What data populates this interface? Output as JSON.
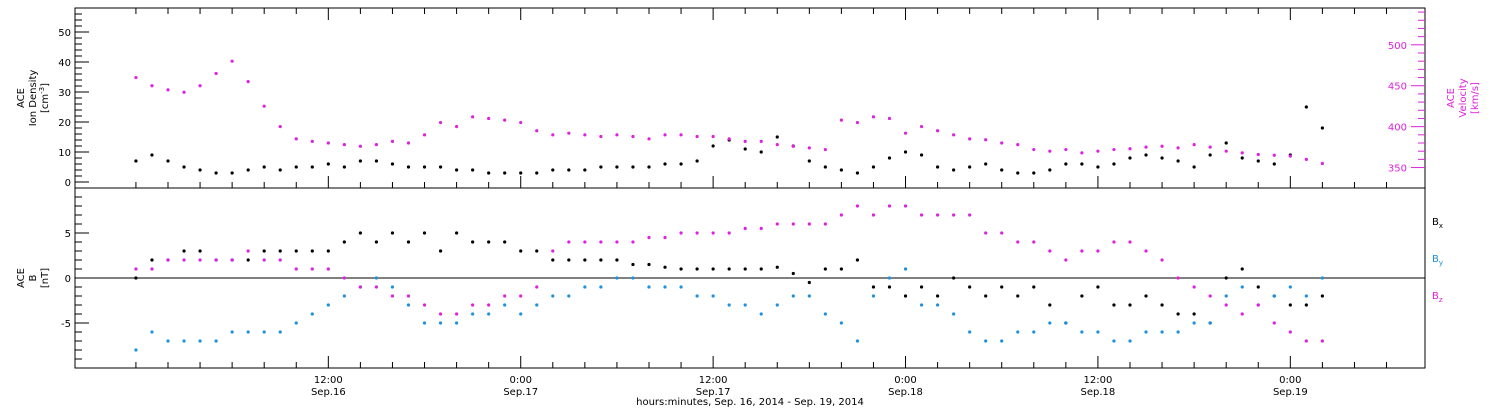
{
  "colors": {
    "black": "#000000",
    "magenta": "#e020e0",
    "blue": "#1f8fe0"
  },
  "chart_data": [
    {
      "type": "scatter",
      "panel": "top",
      "ylabel": {
        "line1": "ACE",
        "line2": "Ion Density",
        "line3": "[cm",
        "sup": "-3",
        "close": "]"
      },
      "ylabel_right": {
        "line1": "ACE",
        "line2": "Velocity",
        "line3": "[km/s]"
      },
      "ylim": [
        -2,
        58
      ],
      "yticks": [
        "0",
        "10",
        "20",
        "30",
        "40",
        "50"
      ],
      "ylim_right": [
        325,
        545
      ],
      "yticks_right": [
        "350",
        "400",
        "450",
        "500"
      ],
      "x_unit": "hours since 00:00 Sep.16, 2014",
      "series": [
        {
          "color": "black",
          "axis": "left",
          "x": [
            0,
            1,
            2,
            3,
            4,
            5,
            6,
            7,
            8,
            9,
            10,
            11,
            12,
            13,
            14,
            15,
            16,
            17,
            18,
            19,
            20,
            21,
            22,
            23,
            24,
            25,
            26,
            27,
            28,
            29,
            30,
            31,
            32,
            33,
            34,
            35,
            36,
            37,
            38,
            39,
            40,
            41,
            42,
            43,
            44,
            45,
            46,
            47,
            48,
            49,
            50,
            51,
            52,
            53,
            54,
            55,
            56,
            57,
            58,
            59,
            60,
            61,
            62,
            63,
            64,
            65,
            66,
            67,
            68,
            69,
            70,
            71,
            72,
            73,
            74
          ],
          "y": [
            7,
            9,
            7,
            5,
            4,
            3,
            3,
            4,
            5,
            4,
            5,
            5,
            6,
            5,
            7,
            7,
            6,
            5,
            5,
            5,
            4,
            4,
            3,
            3,
            3,
            3,
            4,
            4,
            4,
            5,
            5,
            5,
            5,
            6,
            6,
            7,
            12,
            14,
            11,
            10,
            15,
            12,
            7,
            5,
            4,
            3,
            5,
            8,
            10,
            9,
            5,
            4,
            5,
            6,
            4,
            3,
            3,
            4,
            6,
            6,
            5,
            6,
            8,
            9,
            8,
            7,
            5,
            9,
            13,
            8,
            7,
            6,
            9,
            25,
            18
          ]
        }
      ],
      "series_right": [
        {
          "color": "magenta",
          "axis": "right",
          "x": [
            0,
            1,
            2,
            3,
            4,
            5,
            6,
            7,
            8,
            9,
            10,
            11,
            12,
            13,
            14,
            15,
            16,
            17,
            18,
            19,
            20,
            21,
            22,
            23,
            24,
            25,
            26,
            27,
            28,
            29,
            30,
            31,
            32,
            33,
            34,
            35,
            36,
            37,
            38,
            39,
            40,
            41,
            42,
            43,
            44,
            45,
            46,
            47,
            48,
            49,
            50,
            51,
            52,
            53,
            54,
            55,
            56,
            57,
            58,
            59,
            60,
            61,
            62,
            63,
            64,
            65,
            66,
            67,
            68,
            69,
            70,
            71,
            72,
            73,
            74
          ],
          "y": [
            460,
            450,
            445,
            442,
            450,
            465,
            480,
            455,
            425,
            400,
            385,
            382,
            380,
            378,
            376,
            378,
            382,
            380,
            390,
            405,
            400,
            412,
            410,
            408,
            405,
            395,
            390,
            392,
            390,
            388,
            390,
            388,
            385,
            390,
            390,
            388,
            388,
            385,
            382,
            382,
            378,
            376,
            374,
            372,
            408,
            405,
            412,
            410,
            392,
            400,
            395,
            390,
            385,
            384,
            380,
            378,
            372,
            370,
            372,
            368,
            370,
            372,
            373,
            375,
            376,
            374,
            378,
            375,
            370,
            368,
            366,
            365,
            364,
            360,
            355
          ]
        }
      ]
    },
    {
      "type": "scatter",
      "panel": "bottom",
      "ylabel": {
        "line1": "ACE",
        "line2": "B",
        "line3": "[nT]"
      },
      "ylim": [
        -10,
        10
      ],
      "yticks": [
        "-5",
        "0",
        "5"
      ],
      "xlim": [
        -3.8,
        80.4
      ],
      "x_unit": "hours since 00:00 Sep.16, 2014",
      "xtick_hours": [
        12,
        24,
        36,
        48,
        60,
        72
      ],
      "xtick_labels": [
        {
          "time": "12:00",
          "date": "Sep.16"
        },
        {
          "time": "0:00",
          "date": "Sep.17"
        },
        {
          "time": "12:00",
          "date": "Sep.17"
        },
        {
          "time": "0:00",
          "date": "Sep.18"
        },
        {
          "time": "12:00",
          "date": "Sep.18"
        },
        {
          "time": "0:00",
          "date": "Sep.19"
        }
      ],
      "xlabel": "hours:minutes, Sep. 16, 2014 - Sep. 19, 2014",
      "legend": [
        {
          "name": "B",
          "sub": "x",
          "color": "black"
        },
        {
          "name": "B",
          "sub": "y",
          "color": "blue"
        },
        {
          "name": "B",
          "sub": "z",
          "color": "magenta"
        }
      ],
      "series": [
        {
          "name": "Bx",
          "color": "black",
          "x": [
            0,
            1,
            2,
            3,
            4,
            5,
            6,
            7,
            8,
            9,
            10,
            11,
            12,
            13,
            14,
            15,
            16,
            17,
            18,
            19,
            20,
            21,
            22,
            23,
            24,
            25,
            26,
            27,
            28,
            29,
            30,
            31,
            32,
            33,
            34,
            35,
            36,
            37,
            38,
            39,
            40,
            41,
            42,
            43,
            44,
            45,
            46,
            47,
            48,
            49,
            50,
            51,
            52,
            53,
            54,
            55,
            56,
            57,
            58,
            59,
            60,
            61,
            62,
            63,
            64,
            65,
            66,
            67,
            68,
            69,
            70,
            71,
            72,
            73,
            74
          ],
          "y": [
            0,
            2,
            2,
            3,
            3,
            2,
            2,
            2,
            3,
            3,
            3,
            3,
            3,
            4,
            5,
            4,
            5,
            4,
            5,
            3,
            5,
            4,
            4,
            4,
            3,
            3,
            2,
            2,
            2,
            2,
            2,
            1.5,
            1.5,
            1.2,
            1,
            1,
            1,
            1,
            1,
            1,
            1.2,
            0.5,
            -0.5,
            1,
            1,
            2,
            -1,
            -1,
            -2,
            -1,
            -2,
            0,
            -1,
            -2,
            -1,
            -2,
            -1,
            -3,
            -5,
            -2,
            -1,
            -3,
            -3,
            -2,
            -3,
            -4,
            -4,
            -5,
            0,
            1,
            -1,
            -2,
            -3,
            -3,
            -2
          ]
        },
        {
          "name": "By",
          "color": "blue",
          "x": [
            0,
            1,
            2,
            3,
            4,
            5,
            6,
            7,
            8,
            9,
            10,
            11,
            12,
            13,
            14,
            15,
            16,
            17,
            18,
            19,
            20,
            21,
            22,
            23,
            24,
            25,
            26,
            27,
            28,
            29,
            30,
            31,
            32,
            33,
            34,
            35,
            36,
            37,
            38,
            39,
            40,
            41,
            42,
            43,
            44,
            45,
            46,
            47,
            48,
            49,
            50,
            51,
            52,
            53,
            54,
            55,
            56,
            57,
            58,
            59,
            60,
            61,
            62,
            63,
            64,
            65,
            66,
            67,
            68,
            69,
            70,
            71,
            72,
            73,
            74
          ],
          "y": [
            -8,
            -6,
            -7,
            -7,
            -7,
            -7,
            -6,
            -6,
            -6,
            -6,
            -5,
            -4,
            -3,
            -2,
            -1,
            0,
            -1,
            -3,
            -5,
            -5,
            -5,
            -4,
            -4,
            -3,
            -4,
            -3,
            -2,
            -2,
            -1,
            -1,
            0,
            0,
            -1,
            -1,
            -1,
            -2,
            -2,
            -3,
            -3,
            -4,
            -3,
            -2,
            -2,
            -4,
            -5,
            -7,
            -2,
            0,
            1,
            -3,
            -3,
            -4,
            -6,
            -7,
            -7,
            -6,
            -6,
            -5,
            -5,
            -6,
            -6,
            -7,
            -7,
            -6,
            -6,
            -6,
            -5,
            -5,
            -2,
            -1,
            -3,
            -2,
            -1,
            -2,
            0
          ]
        },
        {
          "name": "Bz",
          "color": "magenta",
          "x": [
            0,
            1,
            2,
            3,
            4,
            5,
            6,
            7,
            8,
            9,
            10,
            11,
            12,
            13,
            14,
            15,
            16,
            17,
            18,
            19,
            20,
            21,
            22,
            23,
            24,
            25,
            26,
            27,
            28,
            29,
            30,
            31,
            32,
            33,
            34,
            35,
            36,
            37,
            38,
            39,
            40,
            41,
            42,
            43,
            44,
            45,
            46,
            47,
            48,
            49,
            50,
            51,
            52,
            53,
            54,
            55,
            56,
            57,
            58,
            59,
            60,
            61,
            62,
            63,
            64,
            65,
            66,
            67,
            68,
            69,
            70,
            71,
            72,
            73,
            74
          ],
          "y": [
            1,
            1,
            2,
            2,
            2,
            2,
            2,
            3,
            2,
            2,
            1,
            1,
            1,
            0,
            -1,
            -1,
            -2,
            -2,
            -3,
            -4,
            -4,
            -3,
            -3,
            -2,
            -2,
            -1,
            3,
            4,
            4,
            4,
            4,
            4,
            4.5,
            4.5,
            5,
            5,
            5,
            5,
            5.5,
            5.5,
            6,
            6,
            6,
            6,
            7,
            8,
            7,
            8,
            8,
            7,
            7,
            7,
            7,
            5,
            5,
            4,
            4,
            3,
            2,
            3,
            3,
            4,
            4,
            3,
            2,
            0,
            -1,
            -2,
            -3,
            -4,
            -3,
            -5,
            -6,
            -7,
            -7
          ]
        }
      ]
    }
  ]
}
